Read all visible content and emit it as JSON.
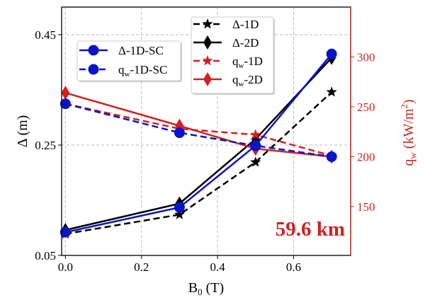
{
  "chart_data": {
    "type": "line",
    "x": [
      0.0,
      0.3,
      0.5,
      0.7
    ],
    "xlabel": {
      "main": "B",
      "sub": "0",
      "rest": " (T)"
    },
    "ylabel": "Δ (m)",
    "y2label": {
      "main": "q",
      "sub": "w",
      "rest": " (kW/m",
      "sup": "2",
      "end": ")"
    },
    "xlim": [
      -0.01,
      0.75
    ],
    "ylim": [
      0.05,
      0.5
    ],
    "y2lim": [
      101,
      350
    ],
    "xticks": [
      "0.0",
      "0.2",
      "0.4",
      "0.6"
    ],
    "xtick_values": [
      0.0,
      0.2,
      0.4,
      0.6
    ],
    "yticks": [
      "0.05",
      "0.25",
      "0.45"
    ],
    "ytick_values": [
      0.05,
      0.25,
      0.45
    ],
    "y2ticks": [
      "150",
      "200",
      "250",
      "300"
    ],
    "y2tick_values": [
      150,
      200,
      250,
      300
    ],
    "grid": true,
    "annotation": "59.6 km",
    "colors": {
      "black": "#000000",
      "blue": "#0a14c8",
      "red": "#d42020",
      "right_axis": "#c8281e",
      "grid": "#bbbbbb"
    },
    "series": [
      {
        "name": "Δ-1D",
        "label_main": "Δ-1D",
        "axis": "left",
        "color": "#000000",
        "dash": true,
        "marker": "star",
        "values": [
          0.089,
          0.124,
          0.219,
          0.346
        ]
      },
      {
        "name": "Δ-2D",
        "label_main": "Δ-2D",
        "axis": "left",
        "color": "#000000",
        "dash": false,
        "marker": "diamond",
        "values": [
          0.096,
          0.144,
          0.261,
          0.408
        ]
      },
      {
        "name": "qw-1D",
        "label_main": "q",
        "label_sub": "w",
        "label_rest": "-1D",
        "axis": "right",
        "color": "#d42020",
        "dash": true,
        "marker": "star",
        "values": [
          253,
          228,
          222,
          201
        ]
      },
      {
        "name": "qw-2D",
        "label_main": "q",
        "label_sub": "w",
        "label_rest": "-2D",
        "axis": "right",
        "color": "#d42020",
        "dash": false,
        "marker": "diamond",
        "values": [
          264,
          231,
          208,
          200
        ]
      },
      {
        "name": "qw-1D-SC",
        "label_main": "q",
        "label_sub": "w",
        "label_rest": "-1D-SC",
        "axis": "right",
        "color": "#0a14c8",
        "dash": true,
        "marker": "circle",
        "values": [
          253,
          224,
          211,
          200
        ]
      },
      {
        "name": "Δ-1D-SC",
        "label_main": "Δ-1D-SC",
        "axis": "left",
        "color": "#0a14c8",
        "dash": false,
        "marker": "circle",
        "values": [
          0.092,
          0.137,
          0.249,
          0.415
        ]
      }
    ],
    "legends": [
      {
        "location": "upper-left",
        "entries": [
          "Δ-1D-SC",
          "qw-1D-SC"
        ]
      },
      {
        "location": "upper-center",
        "entries": [
          "Δ-1D",
          "Δ-2D",
          "qw-1D",
          "qw-2D"
        ]
      }
    ]
  }
}
